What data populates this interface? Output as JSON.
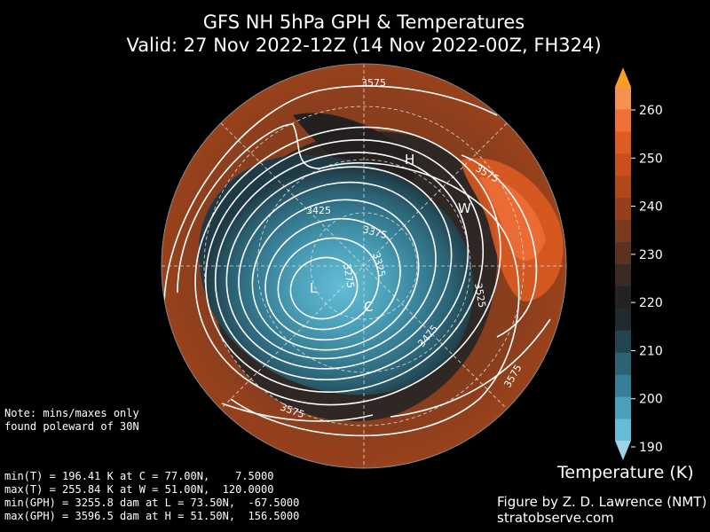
{
  "title": {
    "line1": "GFS NH 5hPa GPH & Temperatures",
    "line2": "Valid: 27 Nov 2022-12Z  (14 Nov 2022-00Z, FH324)"
  },
  "note": {
    "line1": "Note: mins/maxes only",
    "line2": "found poleward of 30N"
  },
  "stats": [
    "min(T) = 196.41 K at C = 77.00N,    7.5000",
    "max(T) = 255.84 K at W = 51.00N,  120.0000",
    "min(GPH) = 3255.8 dam at L = 73.50N,  -67.5000",
    "max(GPH) = 3596.5 dam at H = 51.50N,  156.5000"
  ],
  "credit": {
    "line1": "Figure by Z. D. Lawrence (NMT)",
    "line2": "stratobserve.com"
  },
  "colorbar": {
    "title": "Temperature (K)",
    "ticks": [
      "190",
      "200",
      "210",
      "220",
      "230",
      "240",
      "250",
      "260"
    ],
    "colors": [
      "#64bcd6",
      "#4aa0b8",
      "#377f96",
      "#2b6274",
      "#24454f",
      "#1f2b2f",
      "#242222",
      "#3a2a24",
      "#5b3120",
      "#7a3a1e",
      "#963f1c",
      "#b0481c",
      "#c9501e",
      "#e05d22",
      "#f07038",
      "#f5924f"
    ],
    "extend_low_color": "#9ed2e4",
    "extend_high_color": "#f5a020"
  },
  "markers": [
    {
      "label": "H",
      "kind": "max GPH"
    },
    {
      "label": "W",
      "kind": "max T"
    },
    {
      "label": "L",
      "kind": "min GPH"
    },
    {
      "label": "C",
      "kind": "min T"
    }
  ],
  "contour_labels": [
    "3575",
    "3575",
    "3425",
    "3375",
    "3275",
    "3325",
    "3525",
    "3475",
    "3575",
    "3575"
  ]
}
